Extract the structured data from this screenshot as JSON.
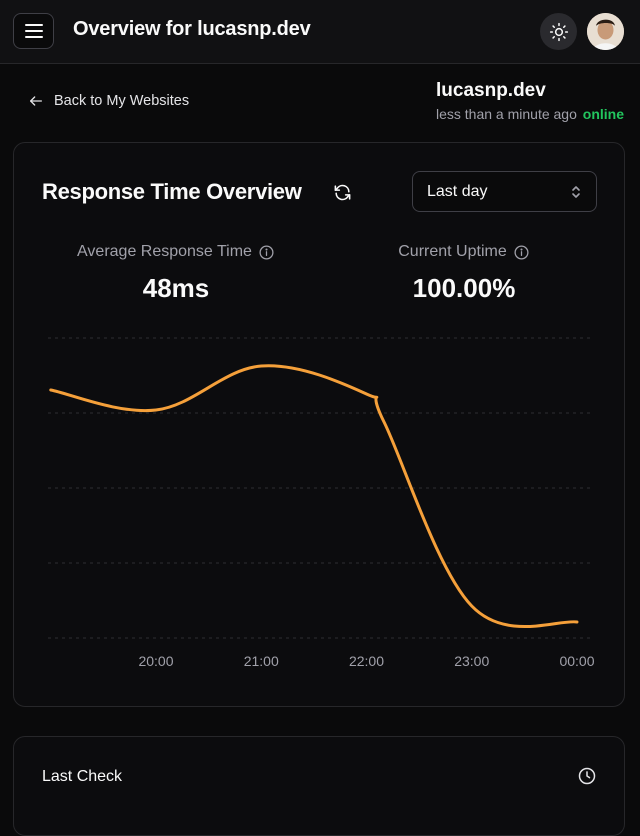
{
  "header": {
    "title": "Overview for lucasnp.dev"
  },
  "nav": {
    "back_label": "Back to My Websites"
  },
  "site": {
    "name": "lucasnp.dev",
    "last_seen": "less than a minute ago",
    "status": "online"
  },
  "response_card": {
    "title": "Response Time Overview",
    "range_selected": "Last day",
    "stats": {
      "avg_label": "Average Response Time",
      "avg_value": "48ms",
      "uptime_label": "Current Uptime",
      "uptime_value": "100.00%"
    }
  },
  "chart_data": {
    "type": "line",
    "x": [
      "19:00",
      "20:00",
      "21:00",
      "22:00",
      "22:10",
      "23:00",
      "00:00"
    ],
    "x_ticks": [
      "20:00",
      "21:00",
      "22:00",
      "23:00",
      "00:00"
    ],
    "series": [
      {
        "values": [
          62,
          57,
          68,
          61,
          54,
          8,
          4
        ],
        "color": "#f5a03a"
      }
    ],
    "ylim": [
      0,
      75
    ],
    "grid": true,
    "legend": "none"
  },
  "last_check_card": {
    "title": "Last Check"
  },
  "colors": {
    "accent": "#f5a03a",
    "online": "#22c55e",
    "background": "#0a0a0b"
  }
}
